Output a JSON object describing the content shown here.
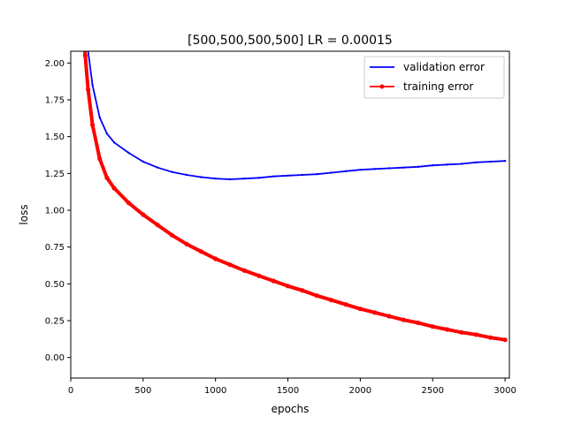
{
  "chart_data": {
    "type": "line",
    "title": "[500,500,500,500] LR = 0.00015",
    "xlabel": "epochs",
    "ylabel": "loss",
    "xlim": [
      0,
      3030
    ],
    "ylim": [
      -0.14,
      2.08
    ],
    "xticks": [
      0,
      500,
      1000,
      1500,
      2000,
      2500,
      3000
    ],
    "yticks": [
      0.0,
      0.25,
      0.5,
      0.75,
      1.0,
      1.25,
      1.5,
      1.75,
      2.0
    ],
    "grid": false,
    "legend_position": "top-right",
    "series": [
      {
        "name": "validation error",
        "color": "#0000ff",
        "marker": "none",
        "x": [
          100,
          120,
          150,
          200,
          250,
          300,
          400,
          500,
          600,
          700,
          800,
          900,
          1000,
          1100,
          1200,
          1300,
          1400,
          1500,
          1600,
          1700,
          1800,
          1900,
          2000,
          2100,
          2200,
          2300,
          2400,
          2500,
          2600,
          2700,
          2800,
          2900,
          3000
        ],
        "y": [
          2.2,
          2.08,
          1.85,
          1.63,
          1.52,
          1.46,
          1.39,
          1.33,
          1.29,
          1.26,
          1.24,
          1.225,
          1.215,
          1.21,
          1.215,
          1.22,
          1.23,
          1.235,
          1.24,
          1.245,
          1.255,
          1.265,
          1.275,
          1.28,
          1.285,
          1.29,
          1.295,
          1.305,
          1.31,
          1.315,
          1.325,
          1.33,
          1.335
        ]
      },
      {
        "name": "training error",
        "color": "#ff0000",
        "marker": "dot",
        "x": [
          80,
          100,
          120,
          150,
          200,
          250,
          300,
          400,
          500,
          600,
          700,
          800,
          900,
          1000,
          1100,
          1200,
          1300,
          1400,
          1500,
          1600,
          1700,
          1800,
          1900,
          2000,
          2100,
          2200,
          2300,
          2400,
          2500,
          2600,
          2700,
          2800,
          2900,
          3000
        ],
        "y": [
          2.3,
          2.05,
          1.82,
          1.58,
          1.35,
          1.22,
          1.15,
          1.05,
          0.97,
          0.9,
          0.83,
          0.77,
          0.72,
          0.67,
          0.63,
          0.59,
          0.555,
          0.52,
          0.485,
          0.455,
          0.42,
          0.39,
          0.36,
          0.33,
          0.305,
          0.28,
          0.255,
          0.235,
          0.21,
          0.19,
          0.17,
          0.155,
          0.135,
          0.12
        ]
      }
    ]
  }
}
